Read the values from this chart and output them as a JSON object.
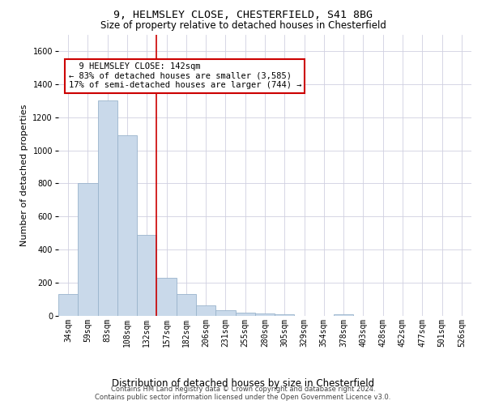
{
  "title_line1": "9, HELMSLEY CLOSE, CHESTERFIELD, S41 8BG",
  "title_line2": "Size of property relative to detached houses in Chesterfield",
  "xlabel": "Distribution of detached houses by size in Chesterfield",
  "ylabel": "Number of detached properties",
  "annotation_line1": "  9 HELMSLEY CLOSE: 142sqm",
  "annotation_line2": "← 83% of detached houses are smaller (3,585)",
  "annotation_line3": "17% of semi-detached houses are larger (744) →",
  "footer_line1": "Contains HM Land Registry data © Crown copyright and database right 2024.",
  "footer_line2": "Contains public sector information licensed under the Open Government Licence v3.0.",
  "bin_labels": [
    "34sqm",
    "59sqm",
    "83sqm",
    "108sqm",
    "132sqm",
    "157sqm",
    "182sqm",
    "206sqm",
    "231sqm",
    "255sqm",
    "280sqm",
    "305sqm",
    "329sqm",
    "354sqm",
    "378sqm",
    "403sqm",
    "428sqm",
    "452sqm",
    "477sqm",
    "501sqm",
    "526sqm"
  ],
  "bar_values": [
    130,
    800,
    1300,
    1090,
    490,
    230,
    130,
    65,
    35,
    22,
    15,
    10,
    0,
    0,
    12,
    0,
    0,
    0,
    0,
    0,
    0
  ],
  "bar_color": "#c9d9ea",
  "bar_edge_color": "#9ab4cc",
  "ref_line_color": "#cc0000",
  "ylim": [
    0,
    1700
  ],
  "yticks": [
    0,
    200,
    400,
    600,
    800,
    1000,
    1200,
    1400,
    1600
  ],
  "background_color": "#ffffff",
  "grid_color": "#d0d0e0",
  "annotation_box_edge_color": "#cc0000",
  "title1_fontsize": 9.5,
  "title2_fontsize": 8.5,
  "ylabel_fontsize": 8,
  "xlabel_fontsize": 8.5,
  "tick_fontsize": 7,
  "footer_fontsize": 6,
  "annot_fontsize": 7.5
}
